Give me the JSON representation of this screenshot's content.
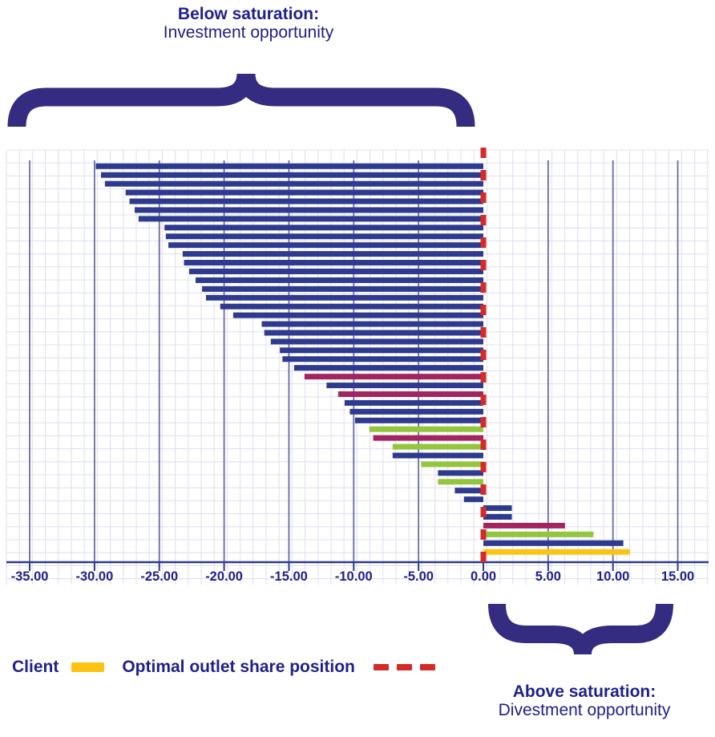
{
  "annotations": {
    "top_bold": "Below saturation:",
    "top_regular": "Investment opportunity",
    "bottom_bold": "Above saturation:",
    "bottom_regular": "Divestment opportunity"
  },
  "legend": {
    "client_label": "Client",
    "optimal_label": "Optimal outlet share position"
  },
  "colors": {
    "navy": "#2e3a8e",
    "magenta": "#a3255f",
    "green": "#93c63e",
    "client": "#fdc313",
    "reference_red": "#d52b28",
    "brace": "#332c80",
    "text": "#20208c",
    "axis": "#2e3a8e",
    "major_grid": "#6a69a7",
    "minor_grid": "#e1e1f0"
  },
  "chart_data": {
    "type": "bar",
    "orientation": "horizontal",
    "title": "",
    "xlabel": "",
    "ylabel": "",
    "xlim": [
      -36.8,
      17.4
    ],
    "grid": true,
    "x_ticks": [
      -35,
      -30,
      -25,
      -20,
      -15,
      -10,
      -5,
      0,
      5,
      10,
      15
    ],
    "x_tick_labels": [
      "-35.00",
      "-30.00",
      "-25.00",
      "-20.00",
      "-15.00",
      "-10.00",
      "-5.00",
      "0.00",
      "5.00",
      "10.00",
      "15.00"
    ],
    "reference_line": {
      "value": 0
    },
    "bars": [
      {
        "value": -29.9,
        "series": "navy"
      },
      {
        "value": -29.5,
        "series": "navy"
      },
      {
        "value": -29.2,
        "series": "navy"
      },
      {
        "value": -27.6,
        "series": "navy"
      },
      {
        "value": -27.3,
        "series": "navy"
      },
      {
        "value": -26.9,
        "series": "navy"
      },
      {
        "value": -26.6,
        "series": "navy"
      },
      {
        "value": -24.6,
        "series": "navy"
      },
      {
        "value": -24.5,
        "series": "navy"
      },
      {
        "value": -24.3,
        "series": "navy"
      },
      {
        "value": -23.2,
        "series": "navy"
      },
      {
        "value": -23.1,
        "series": "navy"
      },
      {
        "value": -22.7,
        "series": "navy"
      },
      {
        "value": -22.2,
        "series": "navy"
      },
      {
        "value": -21.7,
        "series": "navy"
      },
      {
        "value": -21.4,
        "series": "navy"
      },
      {
        "value": -20.3,
        "series": "navy"
      },
      {
        "value": -19.3,
        "series": "navy"
      },
      {
        "value": -17.1,
        "series": "navy"
      },
      {
        "value": -16.9,
        "series": "navy"
      },
      {
        "value": -16.4,
        "series": "navy"
      },
      {
        "value": -15.7,
        "series": "navy"
      },
      {
        "value": -15.5,
        "series": "navy"
      },
      {
        "value": -14.6,
        "series": "navy"
      },
      {
        "value": -13.8,
        "series": "magenta"
      },
      {
        "value": -12.1,
        "series": "navy"
      },
      {
        "value": -11.2,
        "series": "magenta"
      },
      {
        "value": -10.7,
        "series": "navy"
      },
      {
        "value": -10.3,
        "series": "navy"
      },
      {
        "value": -9.9,
        "series": "navy"
      },
      {
        "value": -8.8,
        "series": "green"
      },
      {
        "value": -8.5,
        "series": "magenta"
      },
      {
        "value": -7.0,
        "series": "green"
      },
      {
        "value": -7.0,
        "series": "navy"
      },
      {
        "value": -4.8,
        "series": "green"
      },
      {
        "value": -3.5,
        "series": "navy"
      },
      {
        "value": -3.5,
        "series": "green"
      },
      {
        "value": -2.2,
        "series": "navy"
      },
      {
        "value": -1.5,
        "series": "navy"
      },
      {
        "value": 2.2,
        "series": "navy"
      },
      {
        "value": 2.2,
        "series": "navy"
      },
      {
        "value": 6.3,
        "series": "magenta"
      },
      {
        "value": 8.5,
        "series": "green"
      },
      {
        "value": 10.8,
        "series": "navy"
      },
      {
        "value": 11.3,
        "series": "client"
      }
    ]
  }
}
